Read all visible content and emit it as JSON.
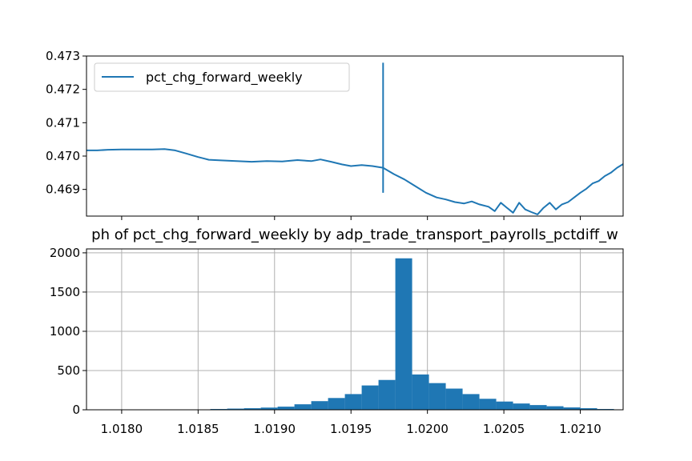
{
  "chart_data": [
    {
      "type": "line",
      "title": "",
      "xlabel": "",
      "ylabel": "",
      "ylim": [
        0.4682,
        0.473
      ],
      "x_tick_labels": [],
      "y_ticks": [
        0.469,
        0.47,
        0.471,
        0.472,
        0.473
      ],
      "y_tick_labels": [
        "0.469",
        "0.470",
        "0.471",
        "0.472",
        "0.473"
      ],
      "grid": false,
      "legend": "top-left",
      "color": "#1f77b4",
      "series": [
        {
          "name": "pct_chg_forward_weekly",
          "x_range": [
            1.01777,
            1.02128
          ],
          "points": [
            [
              1.01777,
              0.47017
            ],
            [
              1.01784,
              0.47017
            ],
            [
              1.01791,
              0.47019
            ],
            [
              1.018,
              0.4702
            ],
            [
              1.0181,
              0.4702
            ],
            [
              1.0182,
              0.4702
            ],
            [
              1.01828,
              0.47021
            ],
            [
              1.01835,
              0.47017
            ],
            [
              1.01842,
              0.47008
            ],
            [
              1.0185,
              0.46997
            ],
            [
              1.01857,
              0.46989
            ],
            [
              1.01865,
              0.46987
            ],
            [
              1.01875,
              0.46985
            ],
            [
              1.01885,
              0.46983
            ],
            [
              1.01895,
              0.46985
            ],
            [
              1.01905,
              0.46984
            ],
            [
              1.01915,
              0.46988
            ],
            [
              1.01924,
              0.46985
            ],
            [
              1.0193,
              0.4699
            ],
            [
              1.01937,
              0.46983
            ],
            [
              1.01944,
              0.46975
            ],
            [
              1.0195,
              0.4697
            ],
            [
              1.01957,
              0.46973
            ],
            [
              1.01964,
              0.4697
            ],
            [
              1.01971,
              0.46965
            ],
            [
              1.01978,
              0.46946
            ],
            [
              1.01985,
              0.4693
            ],
            [
              1.01992,
              0.4691
            ],
            [
              1.01999,
              0.4689
            ],
            [
              1.02006,
              0.46876
            ],
            [
              1.02012,
              0.4687
            ],
            [
              1.02018,
              0.46862
            ],
            [
              1.02024,
              0.46858
            ],
            [
              1.02029,
              0.46864
            ],
            [
              1.02034,
              0.46855
            ],
            [
              1.0204,
              0.46848
            ],
            [
              1.02044,
              0.46835
            ],
            [
              1.02048,
              0.4686
            ],
            [
              1.02052,
              0.46845
            ],
            [
              1.02056,
              0.4683
            ],
            [
              1.0206,
              0.4686
            ],
            [
              1.02064,
              0.4684
            ],
            [
              1.02068,
              0.46832
            ],
            [
              1.02072,
              0.46825
            ],
            [
              1.02076,
              0.46845
            ],
            [
              1.0208,
              0.4686
            ],
            [
              1.02084,
              0.4684
            ],
            [
              1.02088,
              0.46855
            ],
            [
              1.02092,
              0.46862
            ],
            [
              1.02096,
              0.46876
            ],
            [
              1.021,
              0.4689
            ],
            [
              1.02104,
              0.46902
            ],
            [
              1.02108,
              0.46918
            ],
            [
              1.02112,
              0.46925
            ],
            [
              1.02116,
              0.4694
            ],
            [
              1.0212,
              0.4695
            ],
            [
              1.02124,
              0.46965
            ],
            [
              1.02128,
              0.46976
            ]
          ]
        }
      ]
    },
    {
      "type": "bar",
      "title": "ph of pct_chg_forward_weekly by adp_trade_transport_payrolls_pctdiff_w",
      "xlabel": "",
      "ylabel": "",
      "xlim": [
        1.01777,
        1.02128
      ],
      "ylim": [
        0,
        2050
      ],
      "x_ticks": [
        1.018,
        1.0185,
        1.019,
        1.0195,
        1.02,
        1.0205,
        1.021
      ],
      "x_tick_labels": [
        "1.0180",
        "1.0185",
        "1.0190",
        "1.0195",
        "1.0200",
        "1.0205",
        "1.0210"
      ],
      "y_ticks": [
        0,
        500,
        1000,
        1500,
        2000
      ],
      "y_tick_labels": [
        "0",
        "500",
        "1000",
        "1500",
        "2000"
      ],
      "grid": true,
      "color": "#1f77b4",
      "bins": [
        [
          1.01847,
          1.01858,
          4
        ],
        [
          1.01858,
          1.01869,
          10
        ],
        [
          1.01869,
          1.0188,
          15
        ],
        [
          1.0188,
          1.01891,
          20
        ],
        [
          1.01891,
          1.01902,
          28
        ],
        [
          1.01902,
          1.01913,
          40
        ],
        [
          1.01913,
          1.01924,
          70
        ],
        [
          1.01924,
          1.01935,
          110
        ],
        [
          1.01935,
          1.01946,
          150
        ],
        [
          1.01946,
          1.01957,
          200
        ],
        [
          1.01957,
          1.01968,
          310
        ],
        [
          1.01968,
          1.01979,
          380
        ],
        [
          1.01979,
          1.0199,
          1930
        ],
        [
          1.0199,
          1.02001,
          450
        ],
        [
          1.02001,
          1.02012,
          340
        ],
        [
          1.02012,
          1.02023,
          270
        ],
        [
          1.02023,
          1.02034,
          200
        ],
        [
          1.02034,
          1.02045,
          140
        ],
        [
          1.02045,
          1.02056,
          105
        ],
        [
          1.02056,
          1.02067,
          80
        ],
        [
          1.02067,
          1.02078,
          60
        ],
        [
          1.02078,
          1.02089,
          45
        ],
        [
          1.02089,
          1.021,
          30
        ],
        [
          1.021,
          1.02111,
          20
        ],
        [
          1.02111,
          1.02122,
          10
        ]
      ]
    }
  ]
}
